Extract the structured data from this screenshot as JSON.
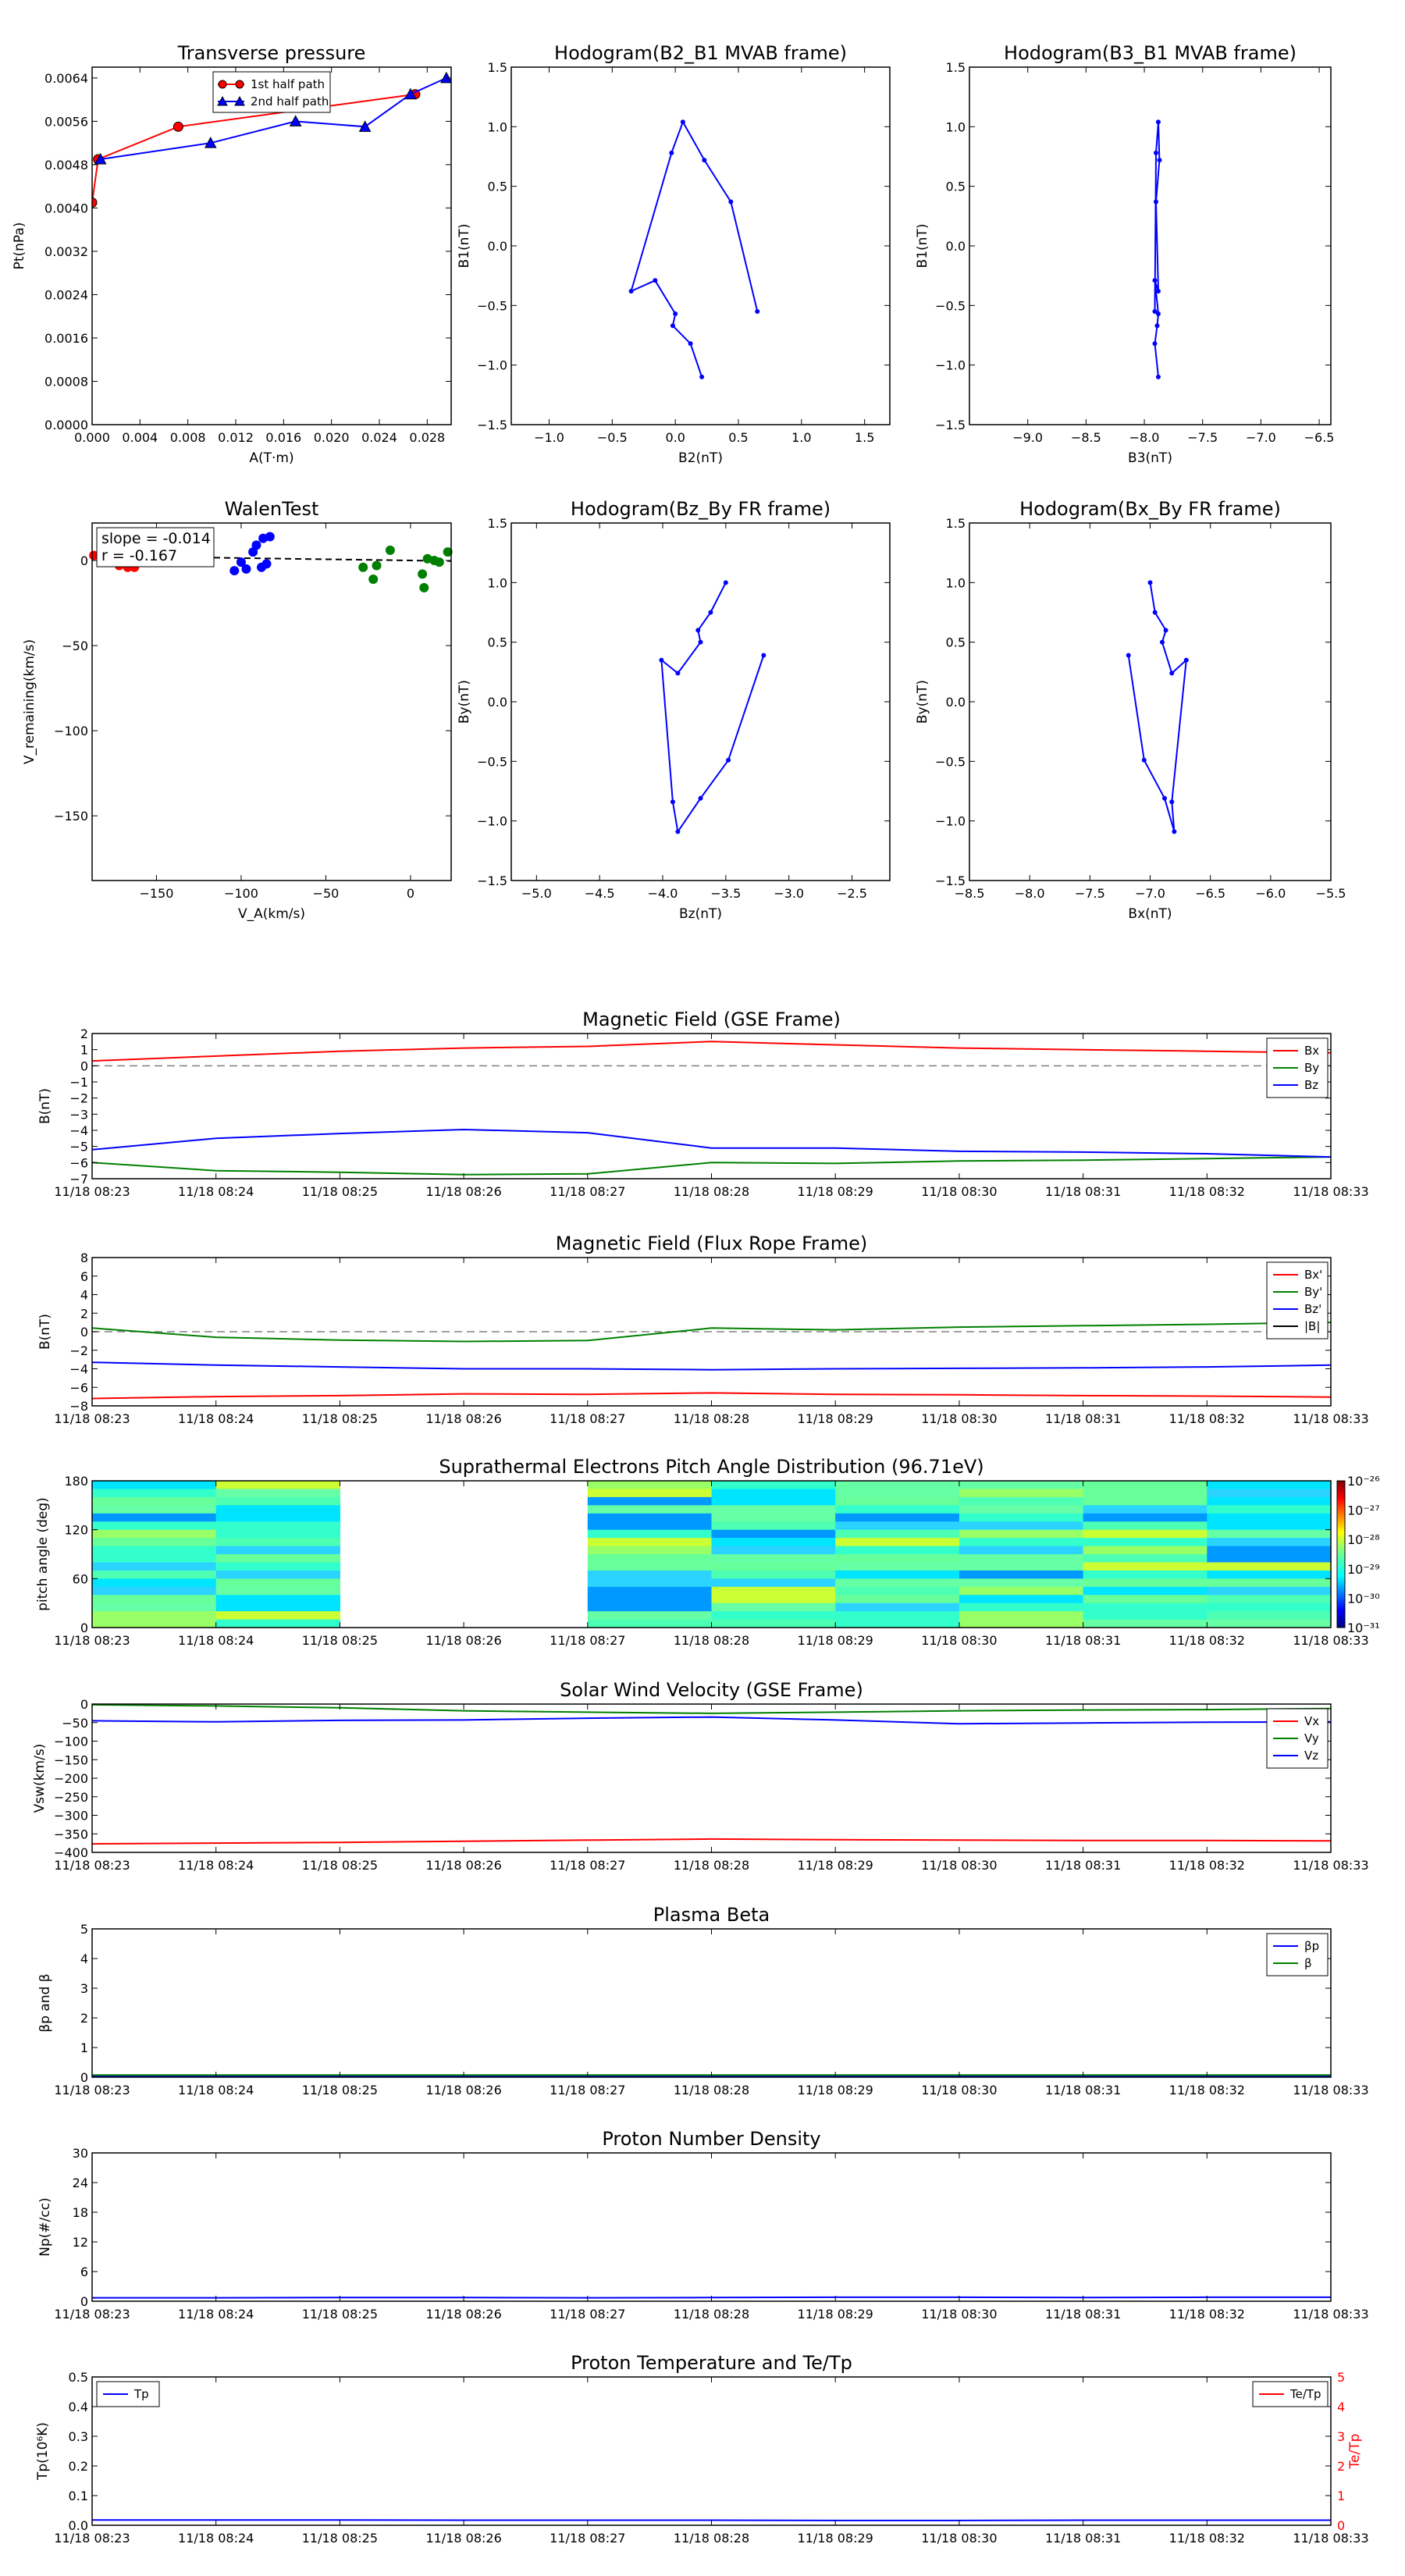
{
  "colors": {
    "red": "#ff0000",
    "green": "#008000",
    "blue": "#0000ff",
    "dash": "#808080"
  },
  "time_ticks": [
    "11/18 08:23",
    "11/18 08:24",
    "11/18 08:25",
    "11/18 08:26",
    "11/18 08:27",
    "11/18 08:28",
    "11/18 08:29",
    "11/18 08:30",
    "11/18 08:31",
    "11/18 08:32",
    "11/18 08:33"
  ],
  "chart_data": [
    {
      "id": "transverse-pressure",
      "type": "line",
      "title": "Transverse pressure",
      "xlabel": "A(T·m)",
      "ylabel": "Pt(nPa)",
      "xlim": [
        0,
        0.03
      ],
      "ylim": [
        0,
        0.0066
      ],
      "xticks": [
        0.0,
        0.004,
        0.008,
        0.012,
        0.016,
        0.02,
        0.024,
        0.028
      ],
      "yticks": [
        0.0,
        0.0008,
        0.0016,
        0.0024,
        0.0032,
        0.004,
        0.0048,
        0.0056,
        0.0064
      ],
      "series": [
        {
          "name": "1st half path",
          "color": "#ff0000",
          "marker": "circle",
          "x": [
            0.0,
            0.0005,
            0.0072,
            0.027
          ],
          "y": [
            0.0041,
            0.0049,
            0.0055,
            0.0061
          ]
        },
        {
          "name": "2nd half path",
          "color": "#0000ff",
          "marker": "triangle",
          "x": [
            0.0007,
            0.0099,
            0.017,
            0.0228,
            0.0266,
            0.0296
          ],
          "y": [
            0.0049,
            0.0052,
            0.0056,
            0.0055,
            0.0061,
            0.0064
          ]
        }
      ],
      "legend": "top-center"
    },
    {
      "id": "hodogram-b2-b1",
      "type": "line",
      "title": "Hodogram(B2_B1 MVAB frame)",
      "xlabel": "B2(nT)",
      "ylabel": "B1(nT)",
      "xlim": [
        -1.3,
        1.7
      ],
      "ylim": [
        -1.5,
        1.5
      ],
      "xticks": [
        -1.0,
        -0.5,
        0.0,
        0.5,
        1.0,
        1.5
      ],
      "yticks": [
        -1.5,
        -1.0,
        -0.5,
        0.0,
        0.5,
        1.0,
        1.5
      ],
      "series": [
        {
          "color": "#0000ff",
          "x": [
            0.21,
            0.12,
            -0.02,
            0.0,
            -0.16,
            -0.35,
            -0.03,
            0.06,
            0.23,
            0.44,
            0.65
          ],
          "y": [
            -1.1,
            -0.82,
            -0.67,
            -0.57,
            -0.29,
            -0.38,
            0.78,
            1.04,
            0.72,
            0.37,
            -0.55
          ]
        }
      ]
    },
    {
      "id": "hodogram-b3-b1",
      "type": "line",
      "title": "Hodogram(B3_B1 MVAB frame)",
      "xlabel": "B3(nT)",
      "ylabel": "B1(nT)",
      "xlim": [
        -9.5,
        -6.4
      ],
      "ylim": [
        -1.5,
        1.5
      ],
      "xticks": [
        -9.0,
        -8.5,
        -8.0,
        -7.5,
        -7.0,
        -6.5
      ],
      "yticks": [
        -1.5,
        -1.0,
        -0.5,
        0.0,
        0.5,
        1.0,
        1.5
      ],
      "series": [
        {
          "color": "#0000ff",
          "x": [
            -7.88,
            -7.91,
            -7.89,
            -7.88,
            -7.91,
            -7.88,
            -7.9,
            -7.87,
            -7.88,
            -7.9,
            -7.91
          ],
          "y": [
            -1.1,
            -0.82,
            -0.67,
            -0.57,
            -0.29,
            -0.38,
            0.37,
            0.72,
            1.04,
            0.78,
            -0.55
          ]
        }
      ]
    },
    {
      "id": "walen-test",
      "type": "scatter",
      "title": "WalenTest",
      "xlabel": "V_A(km/s)",
      "ylabel": "V_remaining(km/s)",
      "xlim": [
        -188,
        24
      ],
      "ylim": [
        -188,
        22
      ],
      "xticks": [
        -150,
        -100,
        -50,
        0
      ],
      "yticks": [
        -150,
        -100,
        -50,
        0
      ],
      "annotations": [
        "slope = -0.014",
        "r = -0.167"
      ],
      "fit": {
        "slope": -0.014,
        "intercept": 0,
        "color": "#000000"
      },
      "series": [
        {
          "color": "#ff0000",
          "x": [
            -187,
            -183,
            -172,
            -167,
            -163
          ],
          "y": [
            3,
            2,
            -3,
            -4,
            -4
          ]
        },
        {
          "color": "#0000ff",
          "x": [
            -104,
            -100,
            -97,
            -93,
            -91,
            -88,
            -87,
            -85,
            -83
          ],
          "y": [
            -6,
            -1,
            -5,
            5,
            9,
            -4,
            13,
            -2,
            14
          ]
        },
        {
          "color": "#008000",
          "x": [
            -28,
            -22,
            -20,
            -12,
            7,
            8,
            10,
            14,
            17,
            22
          ],
          "y": [
            -4,
            -11,
            -3,
            6,
            -8,
            -16,
            1,
            0,
            -1,
            5
          ]
        }
      ]
    },
    {
      "id": "hodogram-bz-by",
      "type": "line",
      "title": "Hodogram(Bz_By FR frame)",
      "xlabel": "Bz(nT)",
      "ylabel": "By(nT)",
      "xlim": [
        -5.2,
        -2.2
      ],
      "ylim": [
        -1.5,
        1.5
      ],
      "xticks": [
        -5.0,
        -4.5,
        -4.0,
        -3.5,
        -3.0,
        -2.5
      ],
      "yticks": [
        -1.5,
        -1.0,
        -0.5,
        0.0,
        0.5,
        1.0,
        1.5
      ],
      "series": [
        {
          "color": "#0000ff",
          "x": [
            -3.5,
            -3.62,
            -3.72,
            -3.7,
            -3.88,
            -4.01,
            -3.92,
            -3.88,
            -3.7,
            -3.48,
            -3.2
          ],
          "y": [
            1.0,
            0.75,
            0.6,
            0.5,
            0.24,
            0.35,
            -0.84,
            -1.09,
            -0.81,
            -0.49,
            0.39
          ]
        }
      ]
    },
    {
      "id": "hodogram-bx-by",
      "type": "line",
      "title": "Hodogram(Bx_By FR frame)",
      "xlabel": "Bx(nT)",
      "ylabel": "By(nT)",
      "xlim": [
        -8.5,
        -5.5
      ],
      "ylim": [
        -1.5,
        1.5
      ],
      "xticks": [
        -8.5,
        -8.0,
        -7.5,
        -7.0,
        -6.5,
        -6.0,
        -5.5
      ],
      "yticks": [
        -1.5,
        -1.0,
        -0.5,
        0.0,
        0.5,
        1.0,
        1.5
      ],
      "series": [
        {
          "color": "#0000ff",
          "x": [
            -7.0,
            -6.96,
            -6.87,
            -6.9,
            -6.82,
            -6.7,
            -6.82,
            -6.8,
            -6.88,
            -7.05,
            -7.18
          ],
          "y": [
            1.0,
            0.75,
            0.6,
            0.5,
            0.24,
            0.35,
            -0.84,
            -1.09,
            -0.81,
            -0.49,
            0.39
          ]
        }
      ]
    },
    {
      "id": "magnetic-field-gse",
      "type": "line",
      "title": "Magnetic Field (GSE Frame)",
      "ylabel": "B(nT)",
      "xlim": [
        0,
        10
      ],
      "ylim": [
        -7,
        2
      ],
      "yticks": [
        -7,
        -6,
        -5,
        -4,
        -3,
        -2,
        -1,
        0,
        1,
        2
      ],
      "zero_line": true,
      "legend": "top-right",
      "series": [
        {
          "name": "Bx",
          "color": "#ff0000",
          "y": [
            0.3,
            0.6,
            0.9,
            1.1,
            1.2,
            1.5,
            1.3,
            1.1,
            1.0,
            0.9,
            0.8
          ]
        },
        {
          "name": "By",
          "color": "#008000",
          "y": [
            -6.0,
            -6.5,
            -6.6,
            -6.75,
            -6.7,
            -6.0,
            -6.05,
            -5.9,
            -5.85,
            -5.75,
            -5.65
          ]
        },
        {
          "name": "Bz",
          "color": "#0000ff",
          "y": [
            -5.2,
            -4.5,
            -4.2,
            -3.95,
            -4.15,
            -5.1,
            -5.1,
            -5.3,
            -5.35,
            -5.45,
            -5.65
          ]
        }
      ]
    },
    {
      "id": "magnetic-field-flux-rope",
      "type": "line",
      "title": "Magnetic Field (Flux Rope Frame)",
      "ylabel": "B(nT)",
      "xlim": [
        0,
        10
      ],
      "ylim": [
        -8,
        8
      ],
      "yticks": [
        -8,
        -6,
        -4,
        -2,
        0,
        2,
        4,
        6,
        8
      ],
      "zero_line": true,
      "legend": "top-right",
      "series": [
        {
          "name": "Bx'",
          "color": "#ff0000",
          "y": [
            -7.2,
            -7.0,
            -6.9,
            -6.7,
            -6.75,
            -6.6,
            -6.75,
            -6.8,
            -6.9,
            -6.95,
            -7.05
          ]
        },
        {
          "name": "By'",
          "color": "#008000",
          "y": [
            0.4,
            -0.6,
            -0.9,
            -1.05,
            -0.95,
            0.4,
            0.2,
            0.5,
            0.65,
            0.8,
            1.0
          ]
        },
        {
          "name": "Bz'",
          "color": "#0000ff",
          "y": [
            -3.3,
            -3.6,
            -3.8,
            -4.0,
            -4.0,
            -4.1,
            -4.0,
            -3.95,
            -3.9,
            -3.8,
            -3.6
          ]
        },
        {
          "name": "|B|",
          "color": "#000000",
          "y": []
        }
      ]
    },
    {
      "id": "pitch-angle-distribution",
      "type": "heatmap",
      "title": "Suprathermal Electrons Pitch Angle Distribution (96.71eV)",
      "ylabel": "pitch angle (deg)",
      "ylim": [
        0,
        180
      ],
      "yticks": [
        0,
        60,
        120,
        180
      ],
      "colorbar_ticks": [
        "10⁻²⁶",
        "10⁻²⁷",
        "10⁻²⁸",
        "10⁻²⁹",
        "10⁻³⁰",
        "10⁻³¹"
      ],
      "time_bins": 10,
      "angle_bins": 18,
      "missing_columns": [
        2,
        3
      ]
    },
    {
      "id": "solar-wind-velocity",
      "type": "line",
      "title": "Solar Wind Velocity (GSE Frame)",
      "ylabel": "Vsw(km/s)",
      "xlim": [
        0,
        10
      ],
      "ylim": [
        -400,
        0
      ],
      "yticks": [
        0,
        -50,
        -100,
        -150,
        -200,
        -250,
        -300,
        -350,
        -400
      ],
      "legend": "top-right",
      "series": [
        {
          "name": "Vx",
          "color": "#ff0000",
          "y": [
            -377,
            -375,
            -373,
            -370,
            -367,
            -364,
            -366,
            -367,
            -368,
            -368,
            -369
          ]
        },
        {
          "name": "Vy",
          "color": "#008000",
          "y": [
            -2,
            -5,
            -10,
            -18,
            -22,
            -25,
            -22,
            -18,
            -16,
            -15,
            -12
          ]
        },
        {
          "name": "Vz",
          "color": "#0000ff",
          "y": [
            -45,
            -48,
            -44,
            -43,
            -38,
            -35,
            -43,
            -53,
            -51,
            -49,
            -48
          ]
        }
      ]
    },
    {
      "id": "plasma-beta",
      "type": "line",
      "title": "Plasma Beta",
      "ylabel": "βp and β",
      "xlim": [
        0,
        10
      ],
      "ylim": [
        0,
        5
      ],
      "yticks": [
        0,
        1,
        2,
        3,
        4,
        5
      ],
      "legend": "top-right",
      "series": [
        {
          "name": "βp",
          "color": "#0000ff",
          "y": [
            0.03,
            0.03,
            0.03,
            0.03,
            0.03,
            0.03,
            0.03,
            0.03,
            0.03,
            0.03,
            0.03
          ]
        },
        {
          "name": "β",
          "color": "#008000",
          "y": [
            0.07,
            0.07,
            0.07,
            0.07,
            0.07,
            0.07,
            0.07,
            0.07,
            0.07,
            0.07,
            0.07
          ]
        }
      ]
    },
    {
      "id": "proton-density",
      "type": "line",
      "title": "Proton Number Density",
      "ylabel": "Np(#/cc)",
      "xlim": [
        0,
        10
      ],
      "ylim": [
        0,
        30
      ],
      "yticks": [
        0,
        6,
        12,
        18,
        24,
        30
      ],
      "series": [
        {
          "color": "#0000ff",
          "y": [
            0.7,
            0.7,
            0.75,
            0.75,
            0.7,
            0.75,
            0.8,
            0.8,
            0.75,
            0.8,
            0.8
          ]
        }
      ]
    },
    {
      "id": "proton-temperature",
      "type": "line",
      "title": "Proton Temperature and Te/Tp",
      "ylabel": "Tp(10⁶K)",
      "ylabel_right": "Te/Tp",
      "xlim": [
        0,
        10
      ],
      "ylim": [
        0,
        0.5
      ],
      "yticks": [
        0.0,
        0.1,
        0.2,
        0.3,
        0.4,
        0.5
      ],
      "ylim_right": [
        0,
        5
      ],
      "yticks_right": [
        0,
        1,
        2,
        3,
        4,
        5
      ],
      "series": [
        {
          "name": "Tp",
          "color": "#0000ff",
          "axis": "left",
          "y": [
            0.018,
            0.018,
            0.018,
            0.017,
            0.017,
            0.017,
            0.016,
            0.016,
            0.017,
            0.017,
            0.017
          ]
        },
        {
          "name": "Te/Tp",
          "color": "#ff0000",
          "axis": "right",
          "y": []
        }
      ]
    }
  ]
}
